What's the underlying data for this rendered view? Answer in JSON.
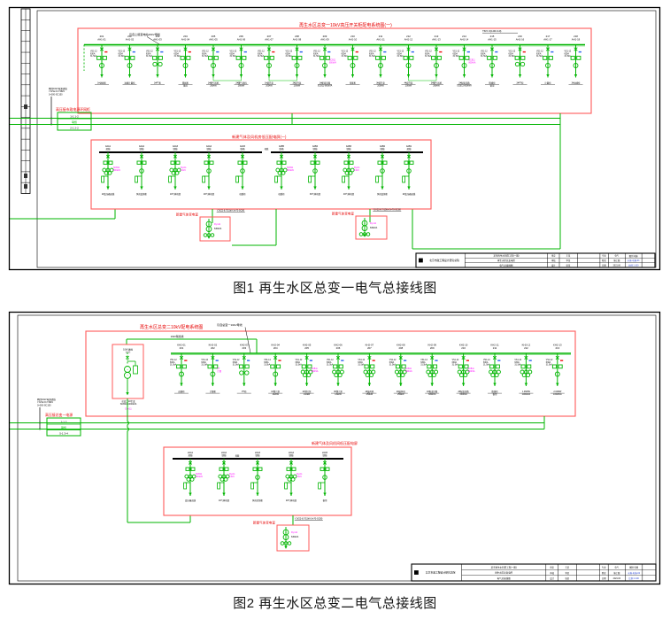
{
  "colors": {
    "green": "#00b400",
    "green2": "#55d455",
    "redbox": "#ff5a5a",
    "redtext": "#e60000",
    "magenta": "#ff00ff",
    "blue": "#2a46d2",
    "tick_red": "#f02020",
    "tick_blue": "#3a6df0",
    "black": "#000000",
    "caption": "#161616"
  },
  "fig1": {
    "caption": "图1 再生水区总变一电气总接线图",
    "red_title": "再生水区总变一10kV高压开关柜配电系统图(一)",
    "bus_note": "引自上级变电站10kV母线",
    "bus_spec": "TMY-3(100×10)",
    "incoming_cable": [
      "两回10kV电源进线",
      "YJV22-8.7/15kV",
      "3×300-SC150"
    ],
    "tap_label": "高压接市政电源环网柜",
    "tap_rows": [
      "1-1 1-2",
      "联络",
      "2-1 2-2"
    ],
    "micro": [
      "VS1-12",
      "630A",
      "31.5kA"
    ],
    "tie_label": "母联",
    "top_feeders": [
      {
        "id": "201",
        "panel": "AH1-01",
        "load": "1#进线柜"
      },
      {
        "id": "202",
        "panel": "AH1-02",
        "load": "进线计量柜"
      },
      {
        "id": "203",
        "panel": "AH1-03",
        "load": "1#PT柜",
        "pt": true
      },
      {
        "id": "204",
        "panel": "AH1-04",
        "load": "馈线柜/备用"
      },
      {
        "id": "205",
        "panel": "AH1-05",
        "load": "1#曝气风机/280kW"
      },
      {
        "id": "206",
        "panel": "AH1-06",
        "load": "2#曝气风机/280kW"
      },
      {
        "id": "207",
        "panel": "AH1-07",
        "load": "1#提升泵/200kW"
      },
      {
        "id": "208",
        "panel": "AH1-08",
        "load": "2#提升泵/200kW"
      },
      {
        "id": "209",
        "panel": "AH1-09",
        "load": "1#配变回路/SCB11-800kVA",
        "mg": "SCB11/800kVA"
      },
      {
        "id": "210",
        "panel": "AH1-10",
        "load": "母联柜"
      },
      {
        "id": "211",
        "panel": "AH1-11",
        "load": "3#提升泵/200kW"
      },
      {
        "id": "212",
        "panel": "AH1-12",
        "load": "4#提升泵/200kW"
      },
      {
        "id": "213",
        "panel": "AH1-13",
        "load": "3#曝气风机/280kW"
      },
      {
        "id": "214",
        "panel": "AH1-14",
        "load": "2#配变回路/SCB11-800kVA",
        "mg": "SCB11/800kVA"
      },
      {
        "id": "215",
        "panel": "AH1-15",
        "load": "馈线柜/备用"
      },
      {
        "id": "216",
        "panel": "AH1-16",
        "load": "2#PT柜",
        "pt": true
      },
      {
        "id": "217",
        "panel": "AH1-17",
        "load": "计量柜"
      },
      {
        "id": "218",
        "panel": "AH1-18",
        "load": "2#进线柜"
      }
    ],
    "lower_title": "新建气体及风机房低压配电屏(一)",
    "lower_feeders": [
      {
        "id": "4AA1",
        "panel": "进线",
        "load": "1#变压器进线",
        "mg": "SCB11/800kVA"
      },
      {
        "id": "4AA2",
        "panel": "馈线",
        "load": "风机变频柜"
      },
      {
        "id": "4AA3",
        "panel": "馈线",
        "load": "1#气体机组",
        "mg": "Dyn11/0.4kV"
      },
      {
        "id": "4AA4",
        "panel": "馈线",
        "load": "2#气体机组"
      },
      {
        "id": "4AA5",
        "panel": "联络",
        "load": "母联柜"
      },
      {
        "id": "4AB5",
        "panel": "联络",
        "load": "母联柜",
        "mg": "SCB11/800kVA"
      },
      {
        "id": "4AB4",
        "panel": "馈线",
        "load": "3#气体机组"
      },
      {
        "id": "4AB3",
        "panel": "馈线",
        "load": "4#气体机组",
        "mg": "Dyn11/0.4kV"
      },
      {
        "id": "4AB2",
        "panel": "馈线",
        "load": "风机变频柜"
      },
      {
        "id": "4AB1",
        "panel": "进线",
        "load": "2#变压器进线"
      }
    ],
    "sub_label": "新建气体变电室",
    "sub_cable": "YJV22-8.7/15kV-3×70-SC80",
    "sub_mg": "Dyn11",
    "sub_tx": "630kVA"
  },
  "fig2": {
    "caption": "图2 再生水区总变二电气总接线图",
    "red_title": "再生水区总变二10kV配电系统图",
    "bus_note": "引自总变一10kV母线",
    "tie_note": "10kV联络线",
    "sub_top": [
      "10kV进线",
      "1-1G"
    ],
    "sub_bottom": [
      "总变二1#主变",
      "SCB11-1000kVA"
    ],
    "sub_mg_label": "Dyn11",
    "incoming_cable": [
      "两回10kV电源进线",
      "YJV22-8.7/15kV",
      "3×300-SC150"
    ],
    "tap_label": "高压接总变一电源",
    "tap_rows": [
      "1-1 2",
      "联络",
      "5-1 3-4"
    ],
    "micro": [
      "VS1-12",
      "630A",
      "31.5kA"
    ],
    "tie_label": "母联",
    "top_feeders": [
      {
        "id": "KH2-01",
        "panel": "201",
        "load": "进线柜"
      },
      {
        "id": "KH2-02",
        "panel": "202",
        "load": "计量柜",
        "mg": "PT/计量"
      },
      {
        "id": "KH2-03",
        "panel": "203",
        "load": "PT柜",
        "pt": true
      },
      {
        "id": "KH2-04",
        "panel": "204",
        "load": "1#潜污泵/132kW"
      },
      {
        "id": "KH2-05",
        "panel": "205",
        "load": "2#潜污泵/132kW",
        "tx": true,
        "mg": "SCB11/630kVA"
      },
      {
        "id": "KH2-06",
        "panel": "206",
        "load": "3#潜污泵/132kW",
        "tx": true
      },
      {
        "id": "KH2-07",
        "panel": "207",
        "load": "1#鼓风机/250kW",
        "tx": true
      },
      {
        "id": "KH2-08",
        "panel": "208",
        "load": "2#鼓风机/250kW",
        "tx": true,
        "mg": "SCB11/630kVA"
      },
      {
        "id": "KH2-09",
        "panel": "209",
        "load": "1#配变回路/630kVA",
        "tx": true
      },
      {
        "id": "KH2-10",
        "panel": "210",
        "load": "2#配变回路/630kVA",
        "tx": true,
        "mg": "SCB11/630kVA"
      },
      {
        "id": "KH2-11",
        "panel": "211",
        "load": "馈线柜/备用",
        "tx": true
      },
      {
        "id": "KH2-12",
        "panel": "212",
        "load": "1.06MW/1000kVA",
        "tx": true
      },
      {
        "id": "KH2-13",
        "panel": "213",
        "load": "2.04MW/1000kVA"
      }
    ],
    "lower_title": "新建气体及风机间低压配电屏",
    "lower_feeders": [
      {
        "id": "2AA1",
        "panel": "进线",
        "load": "变压器进线",
        "mg": "SCB11/630kVA"
      },
      {
        "id": "2AA2",
        "panel": "馈线",
        "load": "1#气体机组",
        "tx": true,
        "mg": "Dyn11/0.4kV"
      },
      {
        "id": "2AA3",
        "panel": "馈线",
        "load": "风机控制柜"
      },
      {
        "id": "2AA4",
        "panel": "馈线",
        "load": "2#气体机组",
        "tx": true,
        "mg": "Dyn11/0.4kV"
      },
      {
        "id": "2AA5",
        "panel": "馈线",
        "load": "备用"
      }
    ],
    "sub_label": "新建气体变电室",
    "sub_cable": "YJV22-8.7/15kV-3×70-SC80",
    "sub_mg": "Dyn11",
    "sub_tx": "630kVA"
  },
  "title_block": {
    "logo": "北京市政工程设计研究总院",
    "project": [
      "某市再生水利用工程(一期)",
      "再生水区总变电所",
      "电气总接线图"
    ],
    "colA": [
      "审定",
      "审核",
      "设计"
    ],
    "colAv": [
      "王某",
      "李某",
      "张某"
    ],
    "colB": [
      "专业",
      "阶段",
      "日期"
    ],
    "colBv": [
      "电气",
      "施工图",
      "2021.06"
    ],
    "right_row1": "图别 电施",
    "fig1_no": "水施-电施-01",
    "fig2_no": "水施-电施-02",
    "scale": "比例 1:100"
  }
}
